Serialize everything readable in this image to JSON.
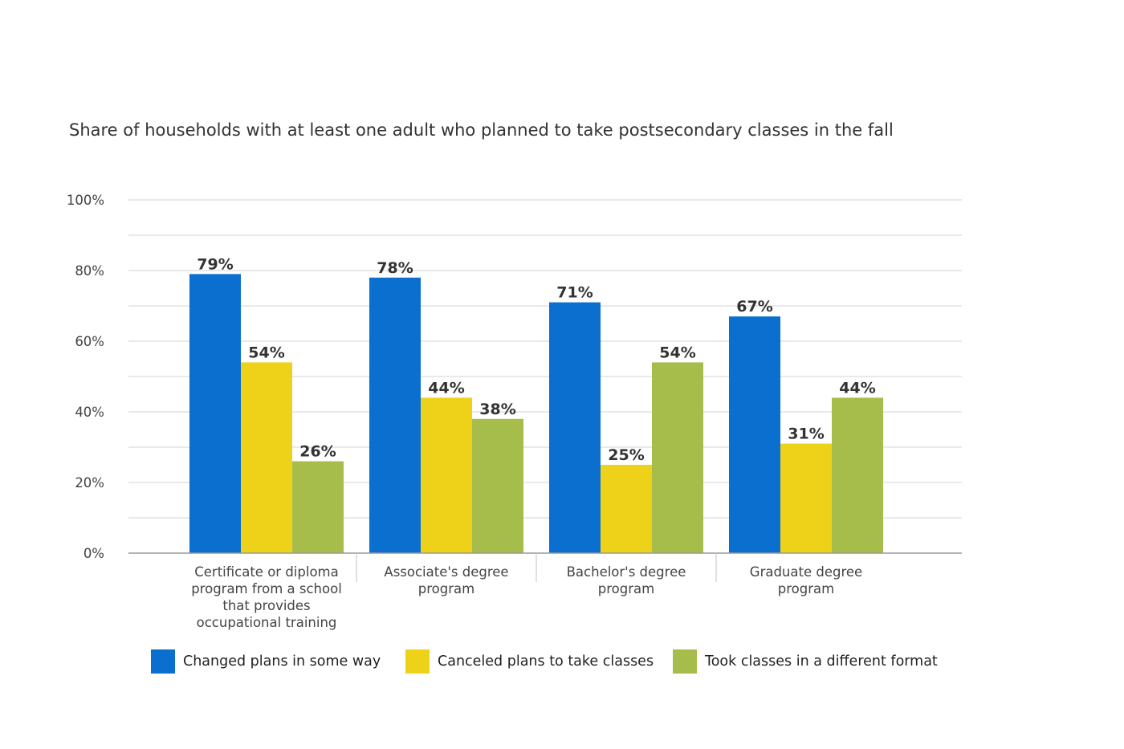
{
  "chart_data": {
    "type": "bar",
    "title": "Share of households with at least one adult who planned to take postsecondary classes in the fall",
    "categories": [
      [
        "Certificate or diploma",
        "program from a school",
        "that provides",
        "occupational training"
      ],
      [
        "Associate's degree",
        "program"
      ],
      [
        "Bachelor's degree",
        "program"
      ],
      [
        "Graduate degree",
        "program"
      ]
    ],
    "series": [
      {
        "name": "Changed plans in some way",
        "color": "#0a6fcf",
        "values": [
          79,
          78,
          71,
          67
        ],
        "labels": [
          "79%",
          "78%",
          "71%",
          "67%"
        ]
      },
      {
        "name": "Canceled plans to take classes",
        "color": "#eed21a",
        "values": [
          54,
          44,
          25,
          31
        ],
        "labels": [
          "54%",
          "44%",
          "25%",
          "31%"
        ]
      },
      {
        "name": "Took classes in a different format",
        "color": "#a7bd4b",
        "values": [
          26,
          38,
          54,
          44
        ],
        "labels": [
          "26%",
          "38%",
          "54%",
          "44%"
        ]
      }
    ],
    "y_ticks": [
      {
        "value": 0,
        "label": "0%"
      },
      {
        "value": 20,
        "label": "20%"
      },
      {
        "value": 40,
        "label": "40%"
      },
      {
        "value": 60,
        "label": "60%"
      },
      {
        "value": 80,
        "label": "80%"
      },
      {
        "value": 100,
        "label": "100%"
      }
    ],
    "ylim": [
      0,
      100
    ],
    "grid": true,
    "legend_position": "bottom"
  }
}
